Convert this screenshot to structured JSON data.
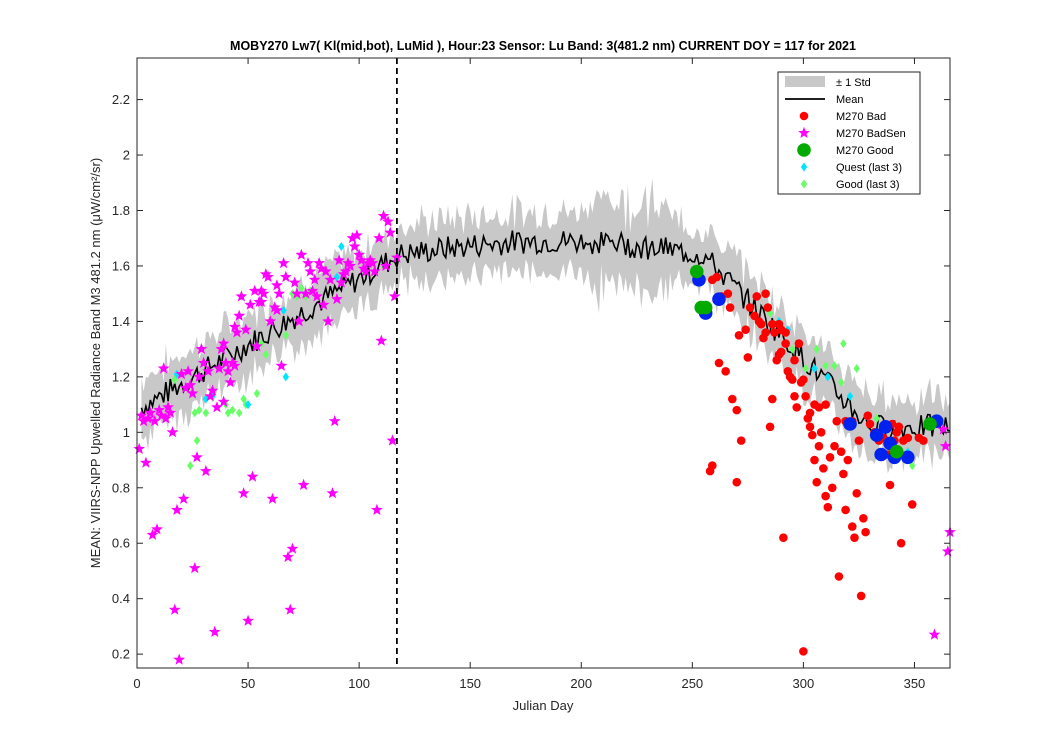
{
  "chart_data": {
    "type": "scatter",
    "title": "MOBY270   Lw7( Kl(mid,bot), LuMid ),   Hour:23 Sensor: Lu Band: 3(481.2 nm)   CURRENT DOY = 117 for 2021",
    "xlabel": "Julian Day",
    "ylabel": "MEAN: VIIRS-NPP Upwelled Radiance Band M3 481.2 nm (μW/cm²/sr)",
    "xlim": [
      0,
      366
    ],
    "ylim": [
      0.15,
      2.35
    ],
    "xticks": [
      0,
      50,
      100,
      150,
      200,
      250,
      300,
      350
    ],
    "yticks": [
      0.2,
      0.4,
      0.6,
      0.8,
      1,
      1.2,
      1.4,
      1.6,
      1.8,
      2,
      2.2
    ],
    "current_doy": 117,
    "legend_position": "top-right",
    "grid": false,
    "colors": {
      "std_band": "#c8c8c8",
      "mean": "#000000",
      "bad": "#ff0000",
      "badsen": "#ff00ff",
      "good": "#00aa00",
      "good_blue": "#0022ee",
      "quest_last3": "#00e5ff",
      "good_last3": "#66ff66"
    },
    "legend": [
      {
        "label": "± 1 Std",
        "marker": "band"
      },
      {
        "label": "Mean",
        "marker": "line"
      },
      {
        "label": "M270 Bad",
        "marker": "dot-red"
      },
      {
        "label": "M270 BadSen",
        "marker": "star-magenta"
      },
      {
        "label": "M270 Good",
        "marker": "dot-green"
      },
      {
        "label": "Quest (last 3)",
        "marker": "diamond-cyan"
      },
      {
        "label": "Good (last 3)",
        "marker": "diamond-lightgreen"
      }
    ],
    "series": [
      {
        "name": "M270 Bad",
        "points": [
          [
            258,
            0.86
          ],
          [
            259,
            0.88
          ],
          [
            262,
            1.25
          ],
          [
            265,
            1.22
          ],
          [
            266,
            1.5
          ],
          [
            268,
            1.12
          ],
          [
            270,
            1.08
          ],
          [
            270,
            0.82
          ],
          [
            271,
            1.35
          ],
          [
            272,
            0.97
          ],
          [
            274,
            1.37
          ],
          [
            275,
            1.27
          ],
          [
            278,
            1.42
          ],
          [
            280,
            1.4
          ],
          [
            282,
            1.34
          ],
          [
            283,
            1.36
          ],
          [
            283,
            1.5
          ],
          [
            284,
            1.45
          ],
          [
            285,
            1.02
          ],
          [
            286,
            1.39
          ],
          [
            286,
            1.12
          ],
          [
            287,
            1.36
          ],
          [
            288,
            1.26
          ],
          [
            289,
            1.39
          ],
          [
            290,
            1.37
          ],
          [
            290,
            1.29
          ],
          [
            291,
            0.62
          ],
          [
            292,
            1.36
          ],
          [
            293,
            1.22
          ],
          [
            294,
            1.2
          ],
          [
            295,
            1.19
          ],
          [
            296,
            1.26
          ],
          [
            296,
            1.13
          ],
          [
            297,
            1.09
          ],
          [
            298,
            1.32
          ],
          [
            299,
            1.18
          ],
          [
            300,
            1.19
          ],
          [
            300,
            0.21
          ],
          [
            301,
            1.13
          ],
          [
            302,
            1.05
          ],
          [
            303,
            1.07
          ],
          [
            303,
            1.02
          ],
          [
            304,
            0.99
          ],
          [
            305,
            1.1
          ],
          [
            305,
            0.9
          ],
          [
            306,
            0.82
          ],
          [
            307,
            0.95
          ],
          [
            308,
            1.0
          ],
          [
            309,
            0.87
          ],
          [
            310,
            0.77
          ],
          [
            311,
            0.73
          ],
          [
            312,
            0.91
          ],
          [
            313,
            0.8
          ],
          [
            314,
            0.95
          ],
          [
            315,
            1.04
          ],
          [
            316,
            0.48
          ],
          [
            317,
            0.93
          ],
          [
            318,
            0.85
          ],
          [
            319,
            0.72
          ],
          [
            320,
            0.9
          ],
          [
            322,
            0.66
          ],
          [
            323,
            0.62
          ],
          [
            324,
            0.78
          ],
          [
            325,
            0.97
          ],
          [
            326,
            0.41
          ],
          [
            327,
            0.69
          ],
          [
            328,
            0.64
          ],
          [
            329,
            1.06
          ],
          [
            330,
            1.03
          ],
          [
            332,
            1.0
          ],
          [
            334,
            0.97
          ],
          [
            336,
            0.98
          ],
          [
            338,
            0.92
          ],
          [
            339,
            0.81
          ],
          [
            340,
            1.03
          ],
          [
            342,
            1.0
          ],
          [
            344,
            0.6
          ],
          [
            345,
            0.97
          ],
          [
            347,
            0.98
          ],
          [
            349,
            0.74
          ],
          [
            352,
            0.98
          ],
          [
            354,
            0.97
          ],
          [
            259,
            1.55
          ],
          [
            261,
            1.56
          ],
          [
            263,
            1.49
          ],
          [
            267,
            1.45
          ],
          [
            276,
            1.45
          ],
          [
            279,
            1.49
          ],
          [
            281,
            1.39
          ],
          [
            289,
            1.28
          ],
          [
            292,
            1.32
          ],
          [
            307,
            1.09
          ],
          [
            310,
            1.1
          ],
          [
            319,
            1.04
          ],
          [
            322,
            1.04
          ],
          [
            341,
            0.97
          ],
          [
            343,
            1.02
          ]
        ]
      },
      {
        "name": "M270 BadSen",
        "points": [
          [
            1,
            0.94
          ],
          [
            2,
            1.06
          ],
          [
            3,
            1.04
          ],
          [
            4,
            0.89
          ],
          [
            5,
            1.05
          ],
          [
            6,
            1.07
          ],
          [
            7,
            0.63
          ],
          [
            8,
            1.04
          ],
          [
            9,
            0.65
          ],
          [
            10,
            1.08
          ],
          [
            11,
            1.06
          ],
          [
            12,
            1.23
          ],
          [
            13,
            1.05
          ],
          [
            14,
            1.09
          ],
          [
            15,
            1.07
          ],
          [
            16,
            1.0
          ],
          [
            17,
            0.36
          ],
          [
            18,
            0.72
          ],
          [
            19,
            0.18
          ],
          [
            20,
            1.21
          ],
          [
            21,
            0.76
          ],
          [
            22,
            1.16
          ],
          [
            23,
            1.22
          ],
          [
            24,
            1.17
          ],
          [
            25,
            1.14
          ],
          [
            26,
            0.51
          ],
          [
            27,
            0.91
          ],
          [
            28,
            1.2
          ],
          [
            29,
            1.3
          ],
          [
            30,
            1.25
          ],
          [
            31,
            0.86
          ],
          [
            32,
            1.22
          ],
          [
            33,
            1.13
          ],
          [
            34,
            1.15
          ],
          [
            35,
            0.28
          ],
          [
            36,
            1.09
          ],
          [
            37,
            1.23
          ],
          [
            38,
            1.3
          ],
          [
            39,
            1.32
          ],
          [
            40,
            1.25
          ],
          [
            41,
            1.22
          ],
          [
            42,
            1.18
          ],
          [
            43,
            1.25
          ],
          [
            44,
            1.38
          ],
          [
            45,
            1.36
          ],
          [
            46,
            1.42
          ],
          [
            47,
            1.49
          ],
          [
            48,
            0.78
          ],
          [
            49,
            1.37
          ],
          [
            50,
            0.32
          ],
          [
            51,
            1.46
          ],
          [
            52,
            0.84
          ],
          [
            53,
            1.51
          ],
          [
            54,
            1.31
          ],
          [
            55,
            1.47
          ],
          [
            56,
            1.51
          ],
          [
            57,
            1.5
          ],
          [
            58,
            1.57
          ],
          [
            59,
            1.56
          ],
          [
            60,
            1.4
          ],
          [
            61,
            0.76
          ],
          [
            62,
            1.45
          ],
          [
            63,
            1.44
          ],
          [
            64,
            1.5
          ],
          [
            65,
            1.24
          ],
          [
            66,
            1.61
          ],
          [
            67,
            1.56
          ],
          [
            68,
            0.55
          ],
          [
            69,
            0.36
          ],
          [
            70,
            0.58
          ],
          [
            71,
            1.54
          ],
          [
            72,
            1.5
          ],
          [
            73,
            1.4
          ],
          [
            74,
            1.64
          ],
          [
            75,
            0.81
          ],
          [
            76,
            1.5
          ],
          [
            77,
            1.61
          ],
          [
            78,
            1.58
          ],
          [
            79,
            1.51
          ],
          [
            80,
            1.55
          ],
          [
            81,
            1.49
          ],
          [
            82,
            1.61
          ],
          [
            83,
            1.59
          ],
          [
            84,
            1.46
          ],
          [
            85,
            1.58
          ],
          [
            86,
            1.4
          ],
          [
            87,
            1.55
          ],
          [
            88,
            0.78
          ],
          [
            89,
            1.04
          ],
          [
            90,
            1.48
          ],
          [
            91,
            1.62
          ],
          [
            92,
            1.54
          ],
          [
            93,
            1.57
          ],
          [
            94,
            1.58
          ],
          [
            95,
            1.61
          ],
          [
            96,
            1.6
          ],
          [
            97,
            1.7
          ],
          [
            98,
            1.67
          ],
          [
            99,
            1.71
          ],
          [
            100,
            1.64
          ],
          [
            101,
            1.62
          ],
          [
            102,
            1.59
          ],
          [
            103,
            1.58
          ],
          [
            104,
            1.61
          ],
          [
            105,
            1.62
          ],
          [
            106,
            1.61
          ],
          [
            107,
            1.58
          ],
          [
            108,
            0.72
          ],
          [
            109,
            1.7
          ],
          [
            110,
            1.33
          ],
          [
            111,
            1.78
          ],
          [
            112,
            1.6
          ],
          [
            113,
            1.76
          ],
          [
            114,
            1.72
          ],
          [
            115,
            0.97
          ],
          [
            116,
            1.49
          ],
          [
            117,
            1.63
          ],
          [
            44,
            1.24
          ],
          [
            39,
            1.11
          ],
          [
            56,
            1.47
          ],
          [
            63,
            1.53
          ],
          [
            359,
            0.27
          ],
          [
            363,
            1.01
          ],
          [
            364,
            0.95
          ],
          [
            365,
            0.57
          ],
          [
            366,
            0.64
          ]
        ]
      },
      {
        "name": "M270 Good",
        "points": [
          [
            252,
            1.58
          ],
          [
            254,
            1.45
          ],
          [
            256,
            1.45
          ],
          [
            342,
            0.93
          ],
          [
            357,
            1.03
          ]
        ]
      },
      {
        "name": "M270 Good (blue)",
        "points": [
          [
            253,
            1.55
          ],
          [
            256,
            1.43
          ],
          [
            262,
            1.48
          ],
          [
            321,
            1.03
          ],
          [
            333,
            0.99
          ],
          [
            335,
            0.92
          ],
          [
            337,
            1.02
          ],
          [
            339,
            0.96
          ],
          [
            341,
            0.91
          ],
          [
            347,
            0.91
          ],
          [
            360,
            1.04
          ]
        ]
      },
      {
        "name": "Quest (last 3)",
        "points": [
          [
            18,
            1.21
          ],
          [
            31,
            1.12
          ],
          [
            34,
            1.13
          ],
          [
            50,
            1.1
          ],
          [
            66,
            1.44
          ],
          [
            67,
            1.2
          ],
          [
            90,
            1.56
          ],
          [
            92,
            1.67
          ],
          [
            289,
            1.4
          ],
          [
            293,
            1.37
          ],
          [
            305,
            1.23
          ],
          [
            311,
            1.2
          ],
          [
            321,
            1.13
          ],
          [
            337,
            1.03
          ],
          [
            342,
            1.0
          ],
          [
            347,
            0.93
          ]
        ]
      },
      {
        "name": "Good (last 3)",
        "points": [
          [
            17,
            1.19
          ],
          [
            24,
            0.88
          ],
          [
            26,
            1.07
          ],
          [
            27,
            0.97
          ],
          [
            28,
            1.08
          ],
          [
            31,
            1.07
          ],
          [
            40,
            1.1
          ],
          [
            41,
            1.07
          ],
          [
            43,
            1.08
          ],
          [
            46,
            1.07
          ],
          [
            48,
            1.12
          ],
          [
            49,
            1.1
          ],
          [
            54,
            1.14
          ],
          [
            56,
            1.32
          ],
          [
            58,
            1.28
          ],
          [
            67,
            1.35
          ],
          [
            70,
            1.5
          ],
          [
            72,
            1.49
          ],
          [
            74,
            1.52
          ],
          [
            76,
            1.49
          ],
          [
            78,
            1.51
          ],
          [
            285,
            1.43
          ],
          [
            289,
            1.4
          ],
          [
            295,
            1.3
          ],
          [
            301,
            1.23
          ],
          [
            306,
            1.3
          ],
          [
            310,
            1.24
          ],
          [
            314,
            1.24
          ],
          [
            317,
            1.18
          ],
          [
            318,
            1.32
          ],
          [
            324,
            1.23
          ],
          [
            333,
            1.05
          ],
          [
            349,
            0.88
          ]
        ]
      }
    ]
  }
}
